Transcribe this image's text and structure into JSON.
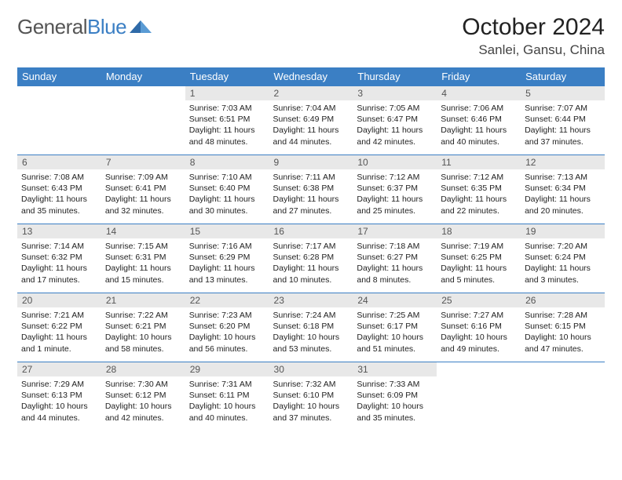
{
  "logo": {
    "text1": "General",
    "text2": "Blue"
  },
  "title": "October 2024",
  "location": "Sanlei, Gansu, China",
  "colors": {
    "header_bg": "#3b7fc4",
    "header_text": "#ffffff",
    "daynum_bg": "#e8e8e8",
    "daynum_text": "#555555",
    "border": "#3b7fc4"
  },
  "weekdays": [
    "Sunday",
    "Monday",
    "Tuesday",
    "Wednesday",
    "Thursday",
    "Friday",
    "Saturday"
  ],
  "grid": [
    [
      null,
      null,
      {
        "n": "1",
        "sr": "7:03 AM",
        "ss": "6:51 PM",
        "dl": "11 hours and 48 minutes."
      },
      {
        "n": "2",
        "sr": "7:04 AM",
        "ss": "6:49 PM",
        "dl": "11 hours and 44 minutes."
      },
      {
        "n": "3",
        "sr": "7:05 AM",
        "ss": "6:47 PM",
        "dl": "11 hours and 42 minutes."
      },
      {
        "n": "4",
        "sr": "7:06 AM",
        "ss": "6:46 PM",
        "dl": "11 hours and 40 minutes."
      },
      {
        "n": "5",
        "sr": "7:07 AM",
        "ss": "6:44 PM",
        "dl": "11 hours and 37 minutes."
      }
    ],
    [
      {
        "n": "6",
        "sr": "7:08 AM",
        "ss": "6:43 PM",
        "dl": "11 hours and 35 minutes."
      },
      {
        "n": "7",
        "sr": "7:09 AM",
        "ss": "6:41 PM",
        "dl": "11 hours and 32 minutes."
      },
      {
        "n": "8",
        "sr": "7:10 AM",
        "ss": "6:40 PM",
        "dl": "11 hours and 30 minutes."
      },
      {
        "n": "9",
        "sr": "7:11 AM",
        "ss": "6:38 PM",
        "dl": "11 hours and 27 minutes."
      },
      {
        "n": "10",
        "sr": "7:12 AM",
        "ss": "6:37 PM",
        "dl": "11 hours and 25 minutes."
      },
      {
        "n": "11",
        "sr": "7:12 AM",
        "ss": "6:35 PM",
        "dl": "11 hours and 22 minutes."
      },
      {
        "n": "12",
        "sr": "7:13 AM",
        "ss": "6:34 PM",
        "dl": "11 hours and 20 minutes."
      }
    ],
    [
      {
        "n": "13",
        "sr": "7:14 AM",
        "ss": "6:32 PM",
        "dl": "11 hours and 17 minutes."
      },
      {
        "n": "14",
        "sr": "7:15 AM",
        "ss": "6:31 PM",
        "dl": "11 hours and 15 minutes."
      },
      {
        "n": "15",
        "sr": "7:16 AM",
        "ss": "6:29 PM",
        "dl": "11 hours and 13 minutes."
      },
      {
        "n": "16",
        "sr": "7:17 AM",
        "ss": "6:28 PM",
        "dl": "11 hours and 10 minutes."
      },
      {
        "n": "17",
        "sr": "7:18 AM",
        "ss": "6:27 PM",
        "dl": "11 hours and 8 minutes."
      },
      {
        "n": "18",
        "sr": "7:19 AM",
        "ss": "6:25 PM",
        "dl": "11 hours and 5 minutes."
      },
      {
        "n": "19",
        "sr": "7:20 AM",
        "ss": "6:24 PM",
        "dl": "11 hours and 3 minutes."
      }
    ],
    [
      {
        "n": "20",
        "sr": "7:21 AM",
        "ss": "6:22 PM",
        "dl": "11 hours and 1 minute."
      },
      {
        "n": "21",
        "sr": "7:22 AM",
        "ss": "6:21 PM",
        "dl": "10 hours and 58 minutes."
      },
      {
        "n": "22",
        "sr": "7:23 AM",
        "ss": "6:20 PM",
        "dl": "10 hours and 56 minutes."
      },
      {
        "n": "23",
        "sr": "7:24 AM",
        "ss": "6:18 PM",
        "dl": "10 hours and 53 minutes."
      },
      {
        "n": "24",
        "sr": "7:25 AM",
        "ss": "6:17 PM",
        "dl": "10 hours and 51 minutes."
      },
      {
        "n": "25",
        "sr": "7:27 AM",
        "ss": "6:16 PM",
        "dl": "10 hours and 49 minutes."
      },
      {
        "n": "26",
        "sr": "7:28 AM",
        "ss": "6:15 PM",
        "dl": "10 hours and 47 minutes."
      }
    ],
    [
      {
        "n": "27",
        "sr": "7:29 AM",
        "ss": "6:13 PM",
        "dl": "10 hours and 44 minutes."
      },
      {
        "n": "28",
        "sr": "7:30 AM",
        "ss": "6:12 PM",
        "dl": "10 hours and 42 minutes."
      },
      {
        "n": "29",
        "sr": "7:31 AM",
        "ss": "6:11 PM",
        "dl": "10 hours and 40 minutes."
      },
      {
        "n": "30",
        "sr": "7:32 AM",
        "ss": "6:10 PM",
        "dl": "10 hours and 37 minutes."
      },
      {
        "n": "31",
        "sr": "7:33 AM",
        "ss": "6:09 PM",
        "dl": "10 hours and 35 minutes."
      },
      null,
      null
    ]
  ],
  "labels": {
    "sunrise": "Sunrise:",
    "sunset": "Sunset:",
    "daylight": "Daylight:"
  }
}
